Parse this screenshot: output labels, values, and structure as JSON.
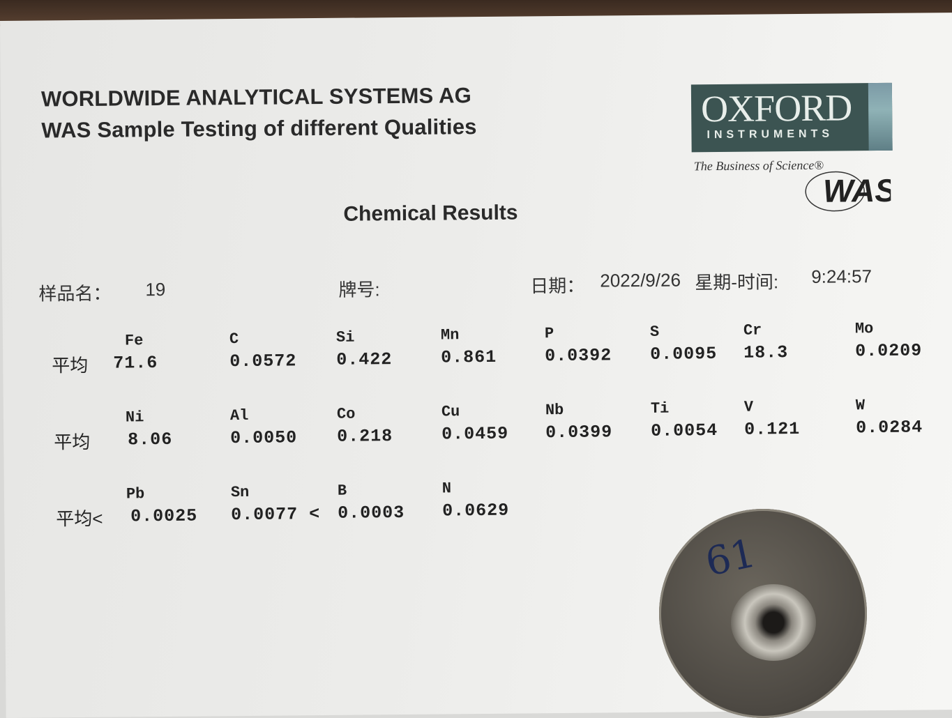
{
  "header": {
    "company": "WORLDWIDE ANALYTICAL SYSTEMS AG",
    "subtitle": "WAS Sample Testing of different Qualities",
    "title": "Chemical Results"
  },
  "logo": {
    "brand": "OXFORD",
    "brand_sub": "INSTRUMENTS",
    "tagline": "The Business of Science®",
    "mark": "WAS",
    "primary_color": "#3c5452"
  },
  "meta": {
    "sample_label": "样品名：",
    "sample_value": "19",
    "grade_label": "牌号:",
    "date_label": "日期：",
    "date_value": "2022/9/26",
    "time_label": "星期-时间:",
    "time_value": "9:24:57"
  },
  "rows": [
    {
      "avg_label": "平均",
      "cells": [
        {
          "element": "Fe",
          "value": "71.6"
        },
        {
          "element": "C",
          "value": "0.0572"
        },
        {
          "element": "Si",
          "value": "0.422"
        },
        {
          "element": "Mn",
          "value": "0.861"
        },
        {
          "element": "P",
          "value": "0.0392"
        },
        {
          "element": "S",
          "value": "0.0095"
        },
        {
          "element": "Cr",
          "value": "18.3"
        },
        {
          "element": "Mo",
          "value": "0.0209"
        }
      ]
    },
    {
      "avg_label": "平均",
      "cells": [
        {
          "element": "Ni",
          "value": "8.06"
        },
        {
          "element": "Al",
          "value": "0.0050"
        },
        {
          "element": "Co",
          "value": "0.218"
        },
        {
          "element": "Cu",
          "value": "0.0459"
        },
        {
          "element": "Nb",
          "value": "0.0399"
        },
        {
          "element": "Ti",
          "value": "0.0054"
        },
        {
          "element": "V",
          "value": "0.121"
        },
        {
          "element": "W",
          "value": "0.0284"
        }
      ]
    },
    {
      "avg_label": "平均<",
      "cells": [
        {
          "element": "Pb",
          "value": "0.0025"
        },
        {
          "element": "Sn",
          "value": "0.0077 <"
        },
        {
          "element": "B",
          "value": "0.0003"
        },
        {
          "element": "N",
          "value": "0.0629"
        }
      ]
    }
  ],
  "sample_marking": "61"
}
